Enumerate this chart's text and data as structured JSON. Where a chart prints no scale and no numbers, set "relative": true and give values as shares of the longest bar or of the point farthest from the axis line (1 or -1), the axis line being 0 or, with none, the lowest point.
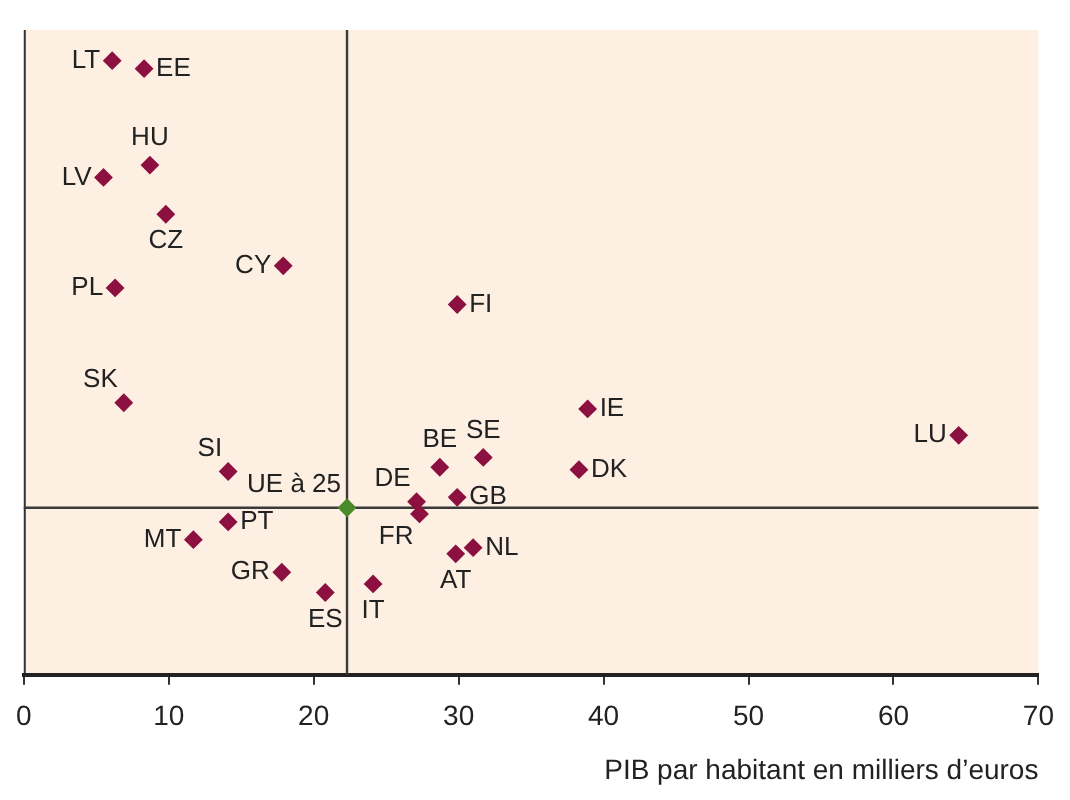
{
  "chart_data": {
    "type": "scatter",
    "xlabel": "PIB par habitant en milliers d’euros",
    "xlim": [
      0,
      70
    ],
    "xticks": [
      0,
      10,
      20,
      30,
      40,
      50,
      60,
      70
    ],
    "relative": true,
    "marker": "diamond",
    "grid": false,
    "legend": false,
    "x": [
      6.1,
      8.3,
      8.7,
      5.5,
      9.8,
      17.9,
      6.3,
      29.9,
      6.9,
      38.9,
      64.5,
      31.7,
      28.7,
      38.3,
      14.1,
      29.9,
      27.1,
      22.3,
      27.3,
      14.1,
      11.7,
      31.0,
      29.8,
      24.1,
      17.8,
      20.8
    ],
    "values": [
      1.0,
      0.987,
      0.83,
      0.81,
      0.75,
      0.666,
      0.63,
      0.603,
      0.443,
      0.433,
      0.39,
      0.354,
      0.338,
      0.334,
      0.331,
      0.289,
      0.282,
      0.272,
      0.262,
      0.249,
      0.22,
      0.207,
      0.197,
      0.148,
      0.167,
      0.134
    ],
    "colors": [
      "#8c1040",
      "#8c1040",
      "#8c1040",
      "#8c1040",
      "#8c1040",
      "#8c1040",
      "#8c1040",
      "#8c1040",
      "#8c1040",
      "#8c1040",
      "#8c1040",
      "#8c1040",
      "#8c1040",
      "#8c1040",
      "#8c1040",
      "#8c1040",
      "#8c1040",
      "#4a8a2a",
      "#8c1040",
      "#8c1040",
      "#8c1040",
      "#8c1040",
      "#8c1040",
      "#8c1040",
      "#8c1040",
      "#8c1040"
    ],
    "ref_lines": [
      {
        "axis": "x",
        "value": 22.3,
        "color": "#3a3a3a"
      },
      {
        "axis": "y",
        "value": 0.272,
        "color": "#3a3a3a"
      }
    ],
    "annotations": [
      {
        "text": "LT",
        "x": 6.1,
        "y": 1.0
      },
      {
        "text": "EE",
        "x": 8.3,
        "y": 0.987
      },
      {
        "text": "HU",
        "x": 8.7,
        "y": 0.83
      },
      {
        "text": "LV",
        "x": 5.5,
        "y": 0.81
      },
      {
        "text": "CZ",
        "x": 9.8,
        "y": 0.75
      },
      {
        "text": "CY",
        "x": 17.9,
        "y": 0.666
      },
      {
        "text": "PL",
        "x": 6.3,
        "y": 0.63
      },
      {
        "text": "FI",
        "x": 29.9,
        "y": 0.603
      },
      {
        "text": "SK",
        "x": 6.9,
        "y": 0.443
      },
      {
        "text": "IE",
        "x": 38.9,
        "y": 0.433
      },
      {
        "text": "LU",
        "x": 64.5,
        "y": 0.39
      },
      {
        "text": "SE",
        "x": 31.7,
        "y": 0.354
      },
      {
        "text": "BE",
        "x": 28.7,
        "y": 0.338
      },
      {
        "text": "DK",
        "x": 38.3,
        "y": 0.334
      },
      {
        "text": "SI",
        "x": 14.1,
        "y": 0.331
      },
      {
        "text": "GB",
        "x": 29.9,
        "y": 0.289
      },
      {
        "text": "DE",
        "x": 27.1,
        "y": 0.282
      },
      {
        "text": "UE à 25",
        "x": 22.3,
        "y": 0.272
      },
      {
        "text": "FR",
        "x": 27.3,
        "y": 0.262
      },
      {
        "text": "PT",
        "x": 14.1,
        "y": 0.249
      },
      {
        "text": "MT",
        "x": 11.7,
        "y": 0.22
      },
      {
        "text": "NL",
        "x": 31.0,
        "y": 0.207
      },
      {
        "text": "AT",
        "x": 29.8,
        "y": 0.197
      },
      {
        "text": "IT",
        "x": 24.1,
        "y": 0.148
      },
      {
        "text": "GR",
        "x": 17.8,
        "y": 0.167
      },
      {
        "text": "ES",
        "x": 20.8,
        "y": 0.134
      }
    ]
  }
}
